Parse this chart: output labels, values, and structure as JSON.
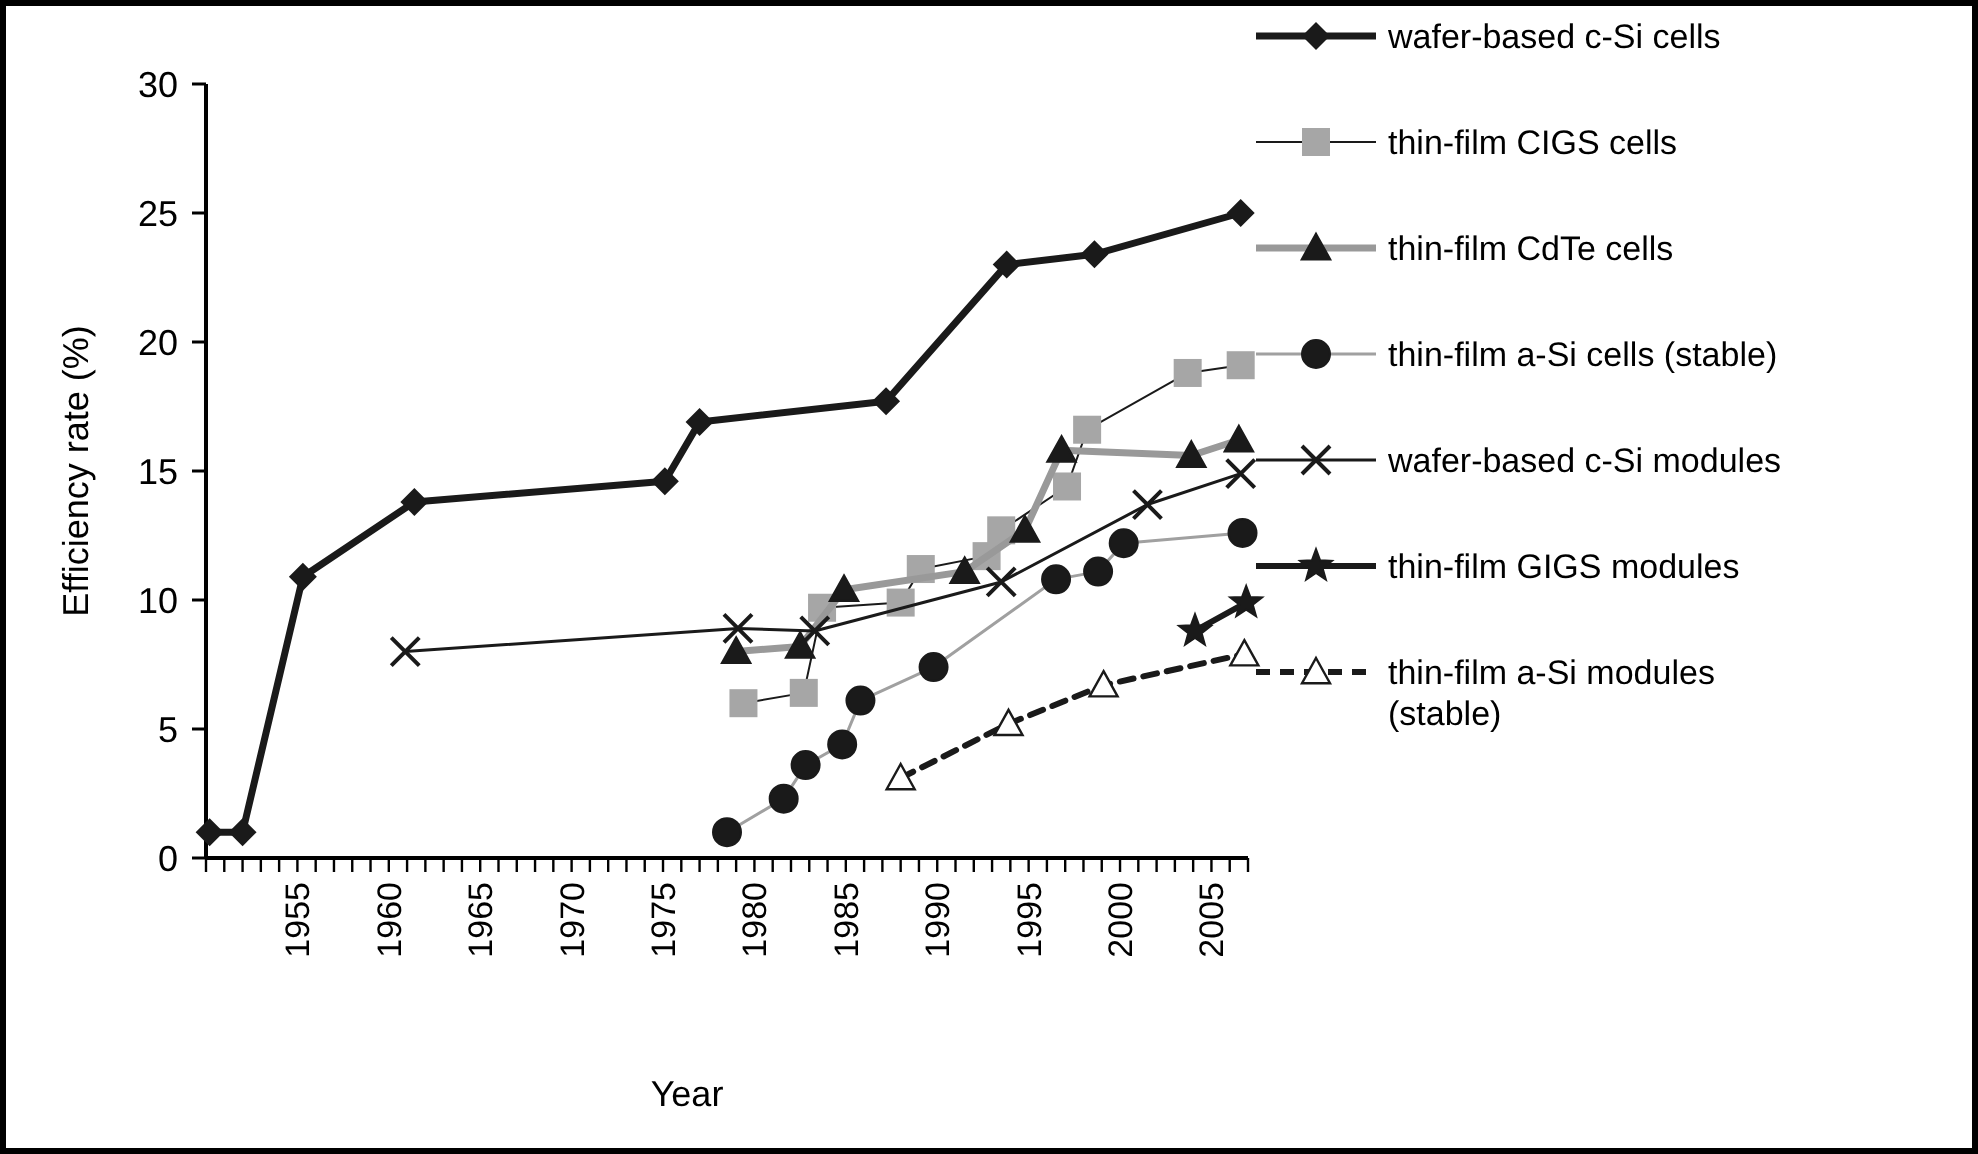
{
  "chart_data": {
    "type": "line",
    "xlabel": "Year",
    "ylabel": "Efficiency rate (%)",
    "xlim": [
      1950,
      2007
    ],
    "ylim": [
      0,
      30
    ],
    "yticks": [
      0,
      5,
      10,
      15,
      20,
      25,
      30
    ],
    "xticks": [
      {
        "value": 1950,
        "label": null
      },
      {
        "value": 1951,
        "label": null
      },
      {
        "value": 1952,
        "label": null
      },
      {
        "value": 1953,
        "label": null
      },
      {
        "value": 1954,
        "label": null
      },
      1955,
      {
        "value": 1956,
        "label": null
      },
      {
        "value": 1957,
        "label": null
      },
      {
        "value": 1958,
        "label": null
      },
      {
        "value": 1959,
        "label": null
      },
      1960,
      {
        "value": 1961,
        "label": null
      },
      {
        "value": 1962,
        "label": null
      },
      {
        "value": 1963,
        "label": null
      },
      {
        "value": 1964,
        "label": null
      },
      1965,
      {
        "value": 1966,
        "label": null
      },
      {
        "value": 1967,
        "label": null
      },
      {
        "value": 1968,
        "label": null
      },
      {
        "value": 1969,
        "label": null
      },
      1970,
      {
        "value": 1971,
        "label": null
      },
      {
        "value": 1972,
        "label": null
      },
      {
        "value": 1973,
        "label": null
      },
      {
        "value": 1974,
        "label": null
      },
      1975,
      {
        "value": 1976,
        "label": null
      },
      {
        "value": 1977,
        "label": null
      },
      {
        "value": 1978,
        "label": null
      },
      {
        "value": 1979,
        "label": null
      },
      1980,
      {
        "value": 1981,
        "label": null
      },
      {
        "value": 1982,
        "label": null
      },
      {
        "value": 1983,
        "label": null
      },
      {
        "value": 1984,
        "label": null
      },
      1985,
      {
        "value": 1986,
        "label": null
      },
      {
        "value": 1987,
        "label": null
      },
      {
        "value": 1988,
        "label": null
      },
      {
        "value": 1989,
        "label": null
      },
      1990,
      {
        "value": 1991,
        "label": null
      },
      {
        "value": 1992,
        "label": null
      },
      {
        "value": 1993,
        "label": null
      },
      {
        "value": 1994,
        "label": null
      },
      1995,
      {
        "value": 1996,
        "label": null
      },
      {
        "value": 1997,
        "label": null
      },
      {
        "value": 1998,
        "label": null
      },
      {
        "value": 1999,
        "label": null
      },
      2000,
      {
        "value": 2001,
        "label": null
      },
      {
        "value": 2002,
        "label": null
      },
      {
        "value": 2003,
        "label": null
      },
      {
        "value": 2004,
        "label": null
      },
      2005,
      {
        "value": 2006,
        "label": null
      },
      {
        "value": 2007,
        "label": null
      }
    ],
    "grid": false,
    "legend": "right",
    "series": [
      {
        "name": "wafer-based c-Si cells",
        "color": "#1a1a1a",
        "marker": "diamond",
        "line_style": "solid",
        "x": [
          1950.2,
          1952,
          1955.3,
          1961.4,
          1975.1,
          1977,
          1987.2,
          1993.8,
          1998.6,
          2006.6
        ],
        "values": [
          1,
          1,
          10.9,
          13.8,
          14.6,
          16.9,
          17.7,
          23,
          23.4,
          25
        ]
      },
      {
        "name": "thin-film CIGS cells",
        "color": "#a6a6a6",
        "marker": "square",
        "line_style": "solid",
        "x": [
          1979.4,
          1982.7,
          1983.7,
          1988,
          1989.1,
          1992.7,
          1993.5,
          1997.1,
          1998.2,
          2003.7,
          2006.6
        ],
        "values": [
          6,
          6.4,
          9.7,
          9.9,
          11.2,
          11.7,
          12.7,
          14.4,
          16.6,
          18.8,
          19.1
        ]
      },
      {
        "name": "thin-film CdTe cells",
        "color": "#1a1a1a",
        "marker": "triangle",
        "line_style": "solid",
        "x": [
          1979,
          1982.5,
          1984.9,
          1991.5,
          1994.8,
          1996.8,
          2003.9,
          2006.5
        ],
        "values": [
          8,
          8.2,
          10.4,
          11.1,
          12.7,
          15.8,
          15.6,
          16.2
        ]
      },
      {
        "name": "thin-film a-Si cells (stable)",
        "color": "#1a1a1a",
        "marker": "circle",
        "line_style": "solid",
        "x": [
          1978.5,
          1981.6,
          1982.8,
          1984.8,
          1985.8,
          1989.8,
          1996.5,
          1998.8,
          2000.2,
          2006.7
        ],
        "values": [
          1,
          2.3,
          3.6,
          4.4,
          6.1,
          7.4,
          10.8,
          11.1,
          12.2,
          12.6
        ]
      },
      {
        "name": "wafer-based c-Si modules",
        "color": "#1a1a1a",
        "marker": "cross",
        "line_style": "solid",
        "x": [
          1960.9,
          1979.1,
          1983.3,
          1993.5,
          2001.5,
          2006.6
        ],
        "values": [
          8,
          8.9,
          8.8,
          10.7,
          13.7,
          14.9
        ]
      },
      {
        "name": "thin-film GIGS modules",
        "color": "#1a1a1a",
        "marker": "star",
        "line_style": "solid",
        "x": [
          2004.1,
          2006.9
        ],
        "values": [
          8.8,
          9.9
        ]
      },
      {
        "name": "thin-film a-Si modules (stable)",
        "color": "#1a1a1a",
        "marker": "triangle",
        "line_style": "dashed",
        "x": [
          1988,
          1993.9,
          1999.1,
          2006.8
        ],
        "values": [
          3.1,
          5.2,
          6.7,
          7.9
        ]
      }
    ]
  }
}
